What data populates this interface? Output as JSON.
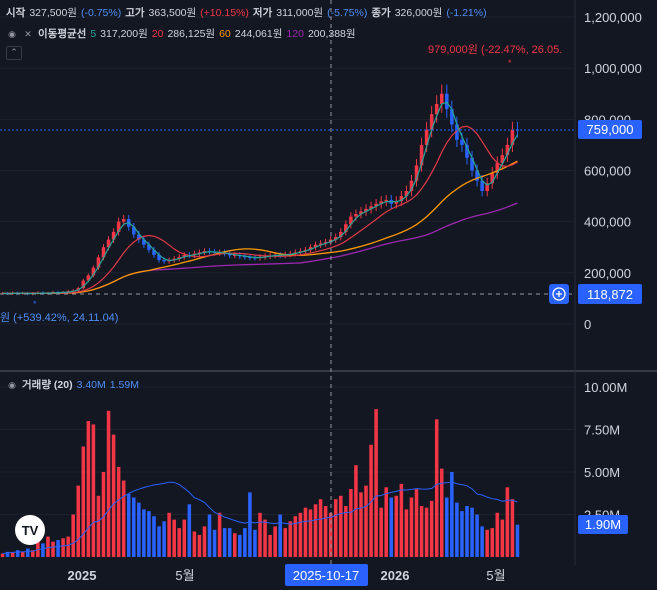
{
  "ohlc_header": {
    "open_label": "시작",
    "open": "327,500원",
    "open_chg": "(-0.75%)",
    "high_label": "고가",
    "high": "363,500원",
    "high_chg": "(+10.15%)",
    "low_label": "저가",
    "low": "311,000원",
    "low_chg": "(-5.75%)",
    "close_label": "종가",
    "close": "326,000원",
    "close_chg": "(-1.21%)"
  },
  "ma_header": {
    "label": "이동평균선",
    "p5": "5",
    "v5": "317,200원",
    "p20": "20",
    "v20": "286,125원",
    "p60": "60",
    "v60": "244,061원",
    "p120": "120",
    "v120": "200,388원"
  },
  "volume_header": {
    "label": "거래량 (20)",
    "v1": "3.40M",
    "v2": "1.59M"
  },
  "annotations": {
    "high_note": "979,000원 (-22.47%, 26.05.",
    "low_note": "원 (+539.42%, 24.11.04)",
    "last_price": "759,000",
    "cursor_price": "118,872",
    "last_volume": "1.90M",
    "cursor_date": "2025-10-17"
  },
  "colors": {
    "up": "#f23645",
    "down": "#2962ff",
    "ma5": "#26a69a",
    "ma20": "#e03a45",
    "ma60": "#ff9800",
    "ma120": "#9c27b0",
    "bg": "#131722"
  },
  "chart_data": {
    "type": "candlestick",
    "price_axis": {
      "ticks": [
        "1,200,000",
        "1,000,000",
        "800,000",
        "600,000",
        "400,000",
        "200,000",
        "0"
      ],
      "ylim": [
        0,
        1200000
      ]
    },
    "volume_axis": {
      "ticks": [
        "10.00M",
        "7.50M",
        "5.00M",
        "2.50M"
      ],
      "ylim": [
        0,
        10000000
      ]
    },
    "time_axis": {
      "ticks": [
        "2025",
        "5월",
        "2026",
        "5월"
      ]
    },
    "candles_close": [
      120000,
      118000,
      122000,
      119000,
      121000,
      117000,
      120000,
      123000,
      119000,
      121000,
      125000,
      122000,
      124000,
      128000,
      131000,
      140000,
      170000,
      190000,
      220000,
      260000,
      300000,
      330000,
      360000,
      400000,
      410000,
      380000,
      350000,
      330000,
      310000,
      290000,
      270000,
      250000,
      245000,
      250000,
      255000,
      262000,
      270000,
      268000,
      275000,
      280000,
      285000,
      282000,
      278000,
      280000,
      275000,
      268000,
      270000,
      265000,
      262000,
      260000,
      258000,
      262000,
      265000,
      268000,
      270000,
      268000,
      272000,
      275000,
      280000,
      285000,
      290000,
      300000,
      310000,
      315000,
      320000,
      330000,
      340000,
      360000,
      390000,
      420000,
      430000,
      440000,
      450000,
      460000,
      470000,
      480000,
      485000,
      470000,
      480000,
      500000,
      520000,
      560000,
      620000,
      700000,
      760000,
      820000,
      860000,
      900000,
      840000,
      780000,
      720000,
      700000,
      650000,
      600000,
      560000,
      520000,
      550000,
      590000,
      630000,
      660000,
      700000,
      760000,
      759000
    ],
    "volume": [
      0.2,
      0.3,
      0.3,
      0.4,
      0.3,
      0.5,
      0.4,
      1.1,
      0.8,
      1.2,
      0.9,
      1.0,
      1.1,
      1.2,
      2.5,
      4.2,
      6.5,
      8.0,
      7.8,
      3.6,
      5.0,
      8.6,
      7.2,
      5.3,
      4.5,
      3.7,
      3.5,
      3.2,
      2.8,
      2.7,
      2.4,
      1.8,
      2.1,
      2.6,
      2.2,
      1.7,
      2.2,
      3.1,
      1.5,
      1.3,
      1.8,
      2.5,
      1.6,
      2.6,
      1.7,
      1.7,
      1.4,
      1.3,
      1.7,
      3.8,
      1.6,
      2.6,
      2.2,
      1.3,
      1.8,
      2.5,
      1.7,
      2.1,
      2.4,
      2.6,
      2.9,
      2.8,
      3.1,
      3.4,
      3.0,
      2.6,
      3.4,
      3.6,
      3.0,
      4.0,
      5.4,
      3.8,
      4.2,
      6.6,
      8.7,
      2.9,
      4.1,
      3.5,
      3.6,
      4.3,
      2.8,
      3.5,
      4.0,
      3.0,
      2.9,
      3.3,
      8.1,
      5.2,
      3.5,
      5.0,
      3.2,
      2.7,
      3.0,
      2.9,
      2.5,
      1.8,
      1.6,
      1.7,
      2.6,
      2.2,
      4.1,
      3.4,
      1.9
    ]
  }
}
